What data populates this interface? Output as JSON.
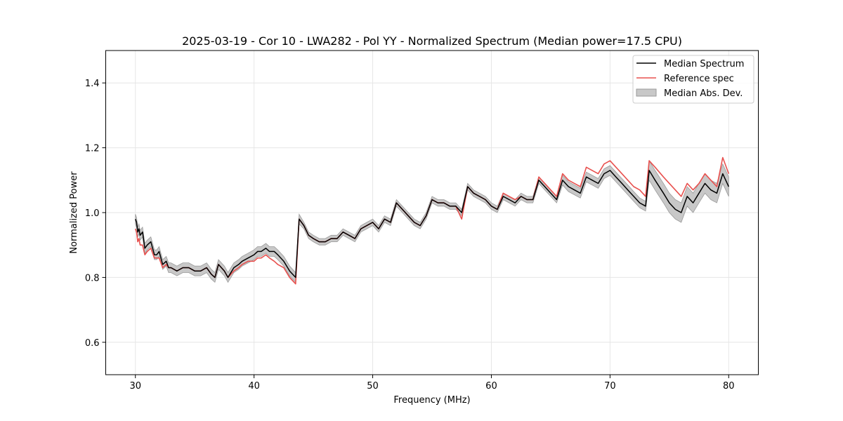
{
  "chart_data": {
    "type": "line",
    "title": "2025-03-19 - Cor 10 - LWA282 - Pol YY - Normalized Spectrum (Median power=17.5 CPU)",
    "xlabel": "Frequency (MHz)",
    "ylabel": "Normalized Power",
    "xlim": [
      27.5,
      82.5
    ],
    "ylim": [
      0.5,
      1.5
    ],
    "xticks": [
      30,
      40,
      50,
      60,
      70,
      80
    ],
    "xtick_labels": [
      "30",
      "40",
      "50",
      "60",
      "70",
      "80"
    ],
    "yticks": [
      0.6,
      0.8,
      1.0,
      1.2,
      1.4
    ],
    "ytick_labels": [
      "0.6",
      "0.8",
      "1.0",
      "1.2",
      "1.4"
    ],
    "grid": true,
    "legend_position": "top-right",
    "legend": [
      "Median Spectrum",
      "Reference spec",
      "Median Abs. Dev."
    ],
    "colors": {
      "median": "#000000",
      "reference": "#e8504e",
      "band": "#c8c8c8",
      "band_edge": "#9a9a9a",
      "grid": "#e6e6e6"
    },
    "series": [
      {
        "name": "Median Spectrum",
        "x": [
          30.0,
          30.1,
          30.2,
          30.3,
          30.4,
          30.6,
          30.8,
          31.0,
          31.3,
          31.6,
          31.8,
          32.0,
          32.3,
          32.6,
          32.8,
          33.0,
          33.5,
          34.0,
          34.5,
          35.0,
          35.5,
          36.0,
          36.4,
          36.7,
          37.0,
          37.5,
          37.8,
          38.3,
          38.7,
          39.0,
          39.5,
          40.0,
          40.3,
          40.6,
          41.0,
          41.3,
          41.7,
          42.0,
          42.5,
          43.0,
          43.5,
          43.8,
          44.2,
          44.6,
          45.0,
          45.5,
          46.0,
          46.5,
          47.0,
          47.5,
          48.0,
          48.5,
          49.0,
          49.5,
          50.0,
          50.5,
          51.0,
          51.5,
          52.0,
          52.5,
          53.0,
          53.5,
          54.0,
          54.5,
          55.0,
          55.5,
          56.0,
          56.5,
          57.0,
          57.5,
          58.0,
          58.5,
          59.0,
          59.5,
          60.0,
          60.5,
          61.0,
          61.5,
          62.0,
          62.5,
          63.0,
          63.5,
          64.0,
          64.5,
          65.0,
          65.5,
          66.0,
          66.5,
          67.0,
          67.5,
          68.0,
          68.5,
          69.0,
          69.5,
          70.0,
          70.5,
          71.0,
          71.5,
          72.0,
          72.5,
          73.0,
          73.3,
          73.8,
          74.5,
          75.0,
          75.5,
          76.0,
          76.5,
          77.0,
          77.5,
          78.0,
          78.5,
          79.0,
          79.5,
          80.0
        ],
        "values": [
          0.98,
          0.97,
          0.94,
          0.95,
          0.93,
          0.94,
          0.89,
          0.9,
          0.91,
          0.87,
          0.87,
          0.88,
          0.84,
          0.85,
          0.83,
          0.83,
          0.82,
          0.83,
          0.83,
          0.82,
          0.82,
          0.83,
          0.81,
          0.8,
          0.84,
          0.82,
          0.8,
          0.83,
          0.84,
          0.85,
          0.86,
          0.87,
          0.88,
          0.88,
          0.89,
          0.88,
          0.88,
          0.87,
          0.85,
          0.82,
          0.8,
          0.98,
          0.96,
          0.93,
          0.92,
          0.91,
          0.91,
          0.92,
          0.92,
          0.94,
          0.93,
          0.92,
          0.95,
          0.96,
          0.97,
          0.95,
          0.98,
          0.97,
          1.03,
          1.01,
          0.99,
          0.97,
          0.96,
          0.99,
          1.04,
          1.03,
          1.03,
          1.02,
          1.02,
          1.0,
          1.08,
          1.06,
          1.05,
          1.04,
          1.02,
          1.01,
          1.05,
          1.04,
          1.03,
          1.05,
          1.04,
          1.04,
          1.1,
          1.08,
          1.06,
          1.04,
          1.1,
          1.08,
          1.07,
          1.06,
          1.11,
          1.1,
          1.09,
          1.12,
          1.13,
          1.11,
          1.09,
          1.07,
          1.05,
          1.03,
          1.02,
          1.13,
          1.1,
          1.06,
          1.03,
          1.01,
          1.0,
          1.05,
          1.03,
          1.06,
          1.09,
          1.07,
          1.06,
          1.12,
          1.08
        ]
      },
      {
        "name": "Reference spec",
        "x": [
          30.0,
          30.1,
          30.2,
          30.3,
          30.4,
          30.6,
          30.8,
          31.0,
          31.3,
          31.6,
          31.8,
          32.0,
          32.3,
          32.6,
          32.8,
          33.0,
          33.5,
          34.0,
          34.5,
          35.0,
          35.5,
          36.0,
          36.4,
          36.7,
          37.0,
          37.5,
          37.8,
          38.3,
          38.7,
          39.0,
          39.5,
          40.0,
          40.3,
          40.6,
          41.0,
          41.3,
          41.7,
          42.0,
          42.5,
          43.0,
          43.5,
          43.8,
          44.2,
          44.6,
          45.0,
          45.5,
          46.0,
          46.5,
          47.0,
          47.5,
          48.0,
          48.5,
          49.0,
          49.5,
          50.0,
          50.5,
          51.0,
          51.5,
          52.0,
          52.5,
          53.0,
          53.5,
          54.0,
          54.5,
          55.0,
          55.5,
          56.0,
          56.5,
          57.0,
          57.5,
          58.0,
          58.5,
          59.0,
          59.5,
          60.0,
          60.5,
          61.0,
          61.5,
          62.0,
          62.5,
          63.0,
          63.5,
          64.0,
          64.5,
          65.0,
          65.5,
          66.0,
          66.5,
          67.0,
          67.5,
          68.0,
          68.5,
          69.0,
          69.5,
          70.0,
          70.5,
          71.0,
          71.5,
          72.0,
          72.5,
          73.0,
          73.3,
          73.8,
          74.5,
          75.0,
          75.5,
          76.0,
          76.5,
          77.0,
          77.5,
          78.0,
          78.5,
          79.0,
          79.5,
          80.0
        ],
        "values": [
          0.95,
          0.94,
          0.91,
          0.92,
          0.9,
          0.9,
          0.87,
          0.88,
          0.89,
          0.86,
          0.86,
          0.86,
          0.83,
          0.84,
          0.83,
          0.83,
          0.82,
          0.83,
          0.83,
          0.82,
          0.82,
          0.83,
          0.81,
          0.8,
          0.84,
          0.82,
          0.8,
          0.82,
          0.83,
          0.84,
          0.85,
          0.85,
          0.86,
          0.86,
          0.87,
          0.86,
          0.85,
          0.84,
          0.83,
          0.8,
          0.78,
          0.98,
          0.96,
          0.93,
          0.92,
          0.91,
          0.91,
          0.92,
          0.92,
          0.94,
          0.93,
          0.92,
          0.95,
          0.96,
          0.97,
          0.95,
          0.98,
          0.97,
          1.03,
          1.01,
          0.99,
          0.97,
          0.96,
          0.99,
          1.04,
          1.03,
          1.03,
          1.02,
          1.02,
          0.98,
          1.08,
          1.06,
          1.05,
          1.04,
          1.02,
          1.01,
          1.06,
          1.05,
          1.04,
          1.05,
          1.04,
          1.04,
          1.11,
          1.09,
          1.07,
          1.05,
          1.12,
          1.1,
          1.09,
          1.08,
          1.14,
          1.13,
          1.12,
          1.15,
          1.16,
          1.14,
          1.12,
          1.1,
          1.08,
          1.07,
          1.05,
          1.16,
          1.14,
          1.11,
          1.09,
          1.07,
          1.05,
          1.09,
          1.07,
          1.09,
          1.12,
          1.1,
          1.08,
          1.17,
          1.12
        ]
      },
      {
        "name": "Median Abs. Dev.",
        "x": [
          30.0,
          30.1,
          30.2,
          30.3,
          30.4,
          30.6,
          30.8,
          31.0,
          31.3,
          31.6,
          31.8,
          32.0,
          32.3,
          32.6,
          32.8,
          33.0,
          33.5,
          34.0,
          34.5,
          35.0,
          35.5,
          36.0,
          36.4,
          36.7,
          37.0,
          37.5,
          37.8,
          38.3,
          38.7,
          39.0,
          39.5,
          40.0,
          40.3,
          40.6,
          41.0,
          41.3,
          41.7,
          42.0,
          42.5,
          43.0,
          43.5,
          43.8,
          44.2,
          44.6,
          45.0,
          45.5,
          46.0,
          46.5,
          47.0,
          47.5,
          48.0,
          48.5,
          49.0,
          49.5,
          50.0,
          50.5,
          51.0,
          51.5,
          52.0,
          52.5,
          53.0,
          53.5,
          54.0,
          54.5,
          55.0,
          55.5,
          56.0,
          56.5,
          57.0,
          57.5,
          58.0,
          58.5,
          59.0,
          59.5,
          60.0,
          60.5,
          61.0,
          61.5,
          62.0,
          62.5,
          63.0,
          63.5,
          64.0,
          64.5,
          65.0,
          65.5,
          66.0,
          66.5,
          67.0,
          67.5,
          68.0,
          68.5,
          69.0,
          69.5,
          70.0,
          70.5,
          71.0,
          71.5,
          72.0,
          72.5,
          73.0,
          73.3,
          73.8,
          74.5,
          75.0,
          75.5,
          76.0,
          76.5,
          77.0,
          77.5,
          78.0,
          78.5,
          79.0,
          79.5,
          80.0
        ],
        "deviation": [
          0.015,
          0.015,
          0.015,
          0.015,
          0.015,
          0.015,
          0.015,
          0.015,
          0.015,
          0.015,
          0.015,
          0.015,
          0.015,
          0.015,
          0.015,
          0.015,
          0.015,
          0.015,
          0.015,
          0.015,
          0.015,
          0.015,
          0.015,
          0.015,
          0.015,
          0.015,
          0.015,
          0.015,
          0.015,
          0.015,
          0.015,
          0.015,
          0.015,
          0.015,
          0.015,
          0.015,
          0.015,
          0.015,
          0.015,
          0.015,
          0.015,
          0.015,
          0.01,
          0.01,
          0.01,
          0.01,
          0.01,
          0.01,
          0.01,
          0.01,
          0.01,
          0.01,
          0.01,
          0.01,
          0.01,
          0.01,
          0.01,
          0.01,
          0.01,
          0.01,
          0.01,
          0.01,
          0.01,
          0.01,
          0.01,
          0.01,
          0.01,
          0.01,
          0.01,
          0.01,
          0.01,
          0.01,
          0.01,
          0.01,
          0.01,
          0.01,
          0.01,
          0.01,
          0.01,
          0.01,
          0.01,
          0.01,
          0.01,
          0.01,
          0.01,
          0.01,
          0.015,
          0.015,
          0.015,
          0.015,
          0.015,
          0.015,
          0.015,
          0.015,
          0.015,
          0.015,
          0.015,
          0.015,
          0.015,
          0.015,
          0.015,
          0.03,
          0.03,
          0.03,
          0.03,
          0.03,
          0.03,
          0.03,
          0.03,
          0.03,
          0.03,
          0.03,
          0.03,
          0.03,
          0.03
        ]
      }
    ]
  }
}
